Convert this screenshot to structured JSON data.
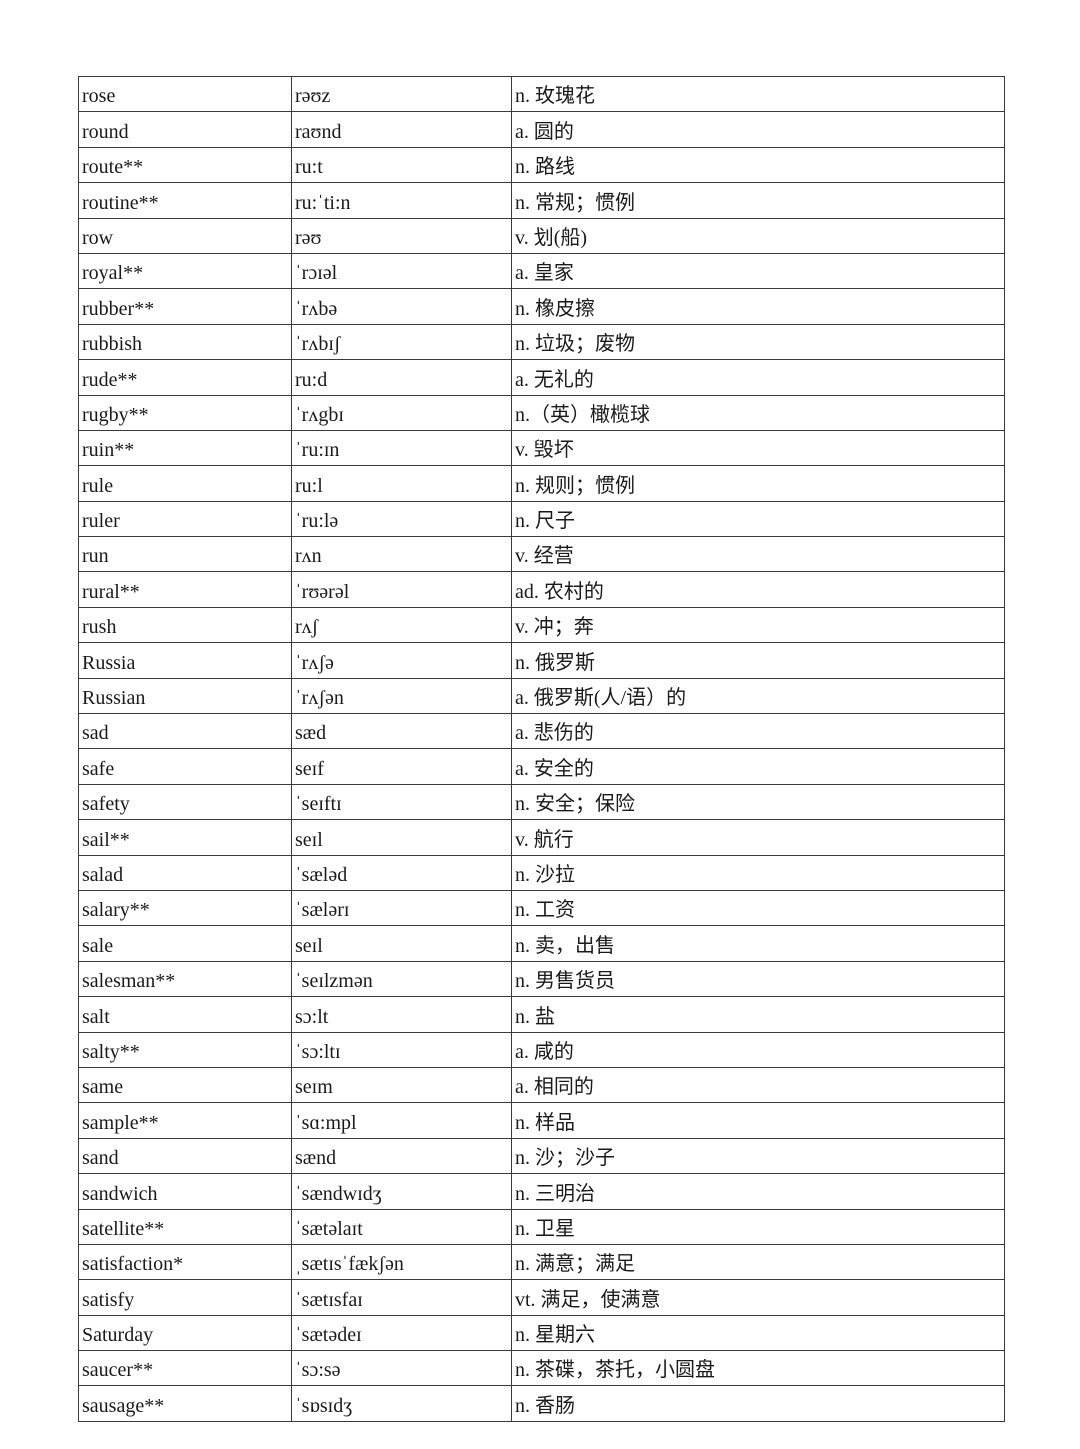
{
  "table": {
    "rows": [
      [
        "rose",
        "rəʊz",
        "n. 玫瑰花"
      ],
      [
        "round",
        "raʊnd",
        "a. 圆的"
      ],
      [
        "route**",
        "ru:t",
        "n. 路线"
      ],
      [
        "routine**",
        "ru:ˈti:n",
        "n. 常规；惯例"
      ],
      [
        "row",
        "rəʊ",
        "v. 划(船)"
      ],
      [
        "royal**",
        "ˈrɔɪəl",
        "a. 皇家"
      ],
      [
        "rubber**",
        "ˈrʌbə",
        "n. 橡皮擦"
      ],
      [
        "rubbish",
        "ˈrʌbɪʃ",
        "n. 垃圾；废物"
      ],
      [
        "rude**",
        "ru:d",
        "a. 无礼的"
      ],
      [
        "rugby**",
        "ˈrʌgbɪ",
        "n.（英）橄榄球"
      ],
      [
        "ruin**",
        "ˈru:ɪn",
        "v. 毁坏"
      ],
      [
        "rule",
        "ru:l",
        "n. 规则；惯例"
      ],
      [
        "ruler",
        "ˈru:lə",
        "n. 尺子"
      ],
      [
        "run",
        "rʌn",
        "v. 经营"
      ],
      [
        "rural**",
        "ˈrʊərəl",
        "ad. 农村的"
      ],
      [
        "rush",
        "rʌʃ",
        "v. 冲；奔"
      ],
      [
        "Russia",
        "ˈrʌʃə",
        "n. 俄罗斯"
      ],
      [
        "Russian",
        "ˈrʌʃən",
        "a. 俄罗斯(人/语）的"
      ],
      [
        "sad",
        "sæd",
        "a. 悲伤的"
      ],
      [
        "safe",
        "seɪf",
        "a. 安全的"
      ],
      [
        "safety",
        "ˈseɪftɪ",
        "n. 安全；保险"
      ],
      [
        "sail**",
        "seɪl",
        "v. 航行"
      ],
      [
        "salad",
        "ˈsæləd",
        "n. 沙拉"
      ],
      [
        "salary**",
        "ˈsælərɪ",
        "n. 工资"
      ],
      [
        "sale",
        "seɪl",
        "n. 卖，出售"
      ],
      [
        "salesman**",
        "ˈseɪlzmən",
        "n. 男售货员"
      ],
      [
        "salt",
        "sɔ:lt",
        "n. 盐"
      ],
      [
        "salty**",
        "ˈsɔ:ltɪ",
        "a. 咸的"
      ],
      [
        "same",
        "seɪm",
        "a. 相同的"
      ],
      [
        "sample**",
        "ˈsɑ:mpl",
        "n. 样品"
      ],
      [
        "sand",
        "sænd",
        "n. 沙；沙子"
      ],
      [
        "sandwich",
        "ˈsændwɪdʒ",
        "n. 三明治"
      ],
      [
        "satellite**",
        "ˈsætəlaɪt",
        "n. 卫星"
      ],
      [
        "satisfaction*",
        "ˌsætɪsˈfækʃən",
        "n. 满意；满足"
      ],
      [
        "satisfy",
        "ˈsætɪsfaɪ",
        "vt. 满足，使满意"
      ],
      [
        "Saturday",
        "ˈsætədeɪ",
        "n. 星期六"
      ],
      [
        "saucer**",
        "ˈsɔ:sə",
        "n. 茶碟，茶托，小圆盘"
      ],
      [
        "sausage**",
        "ˈsɒsɪdʒ",
        "n. 香肠"
      ]
    ]
  }
}
